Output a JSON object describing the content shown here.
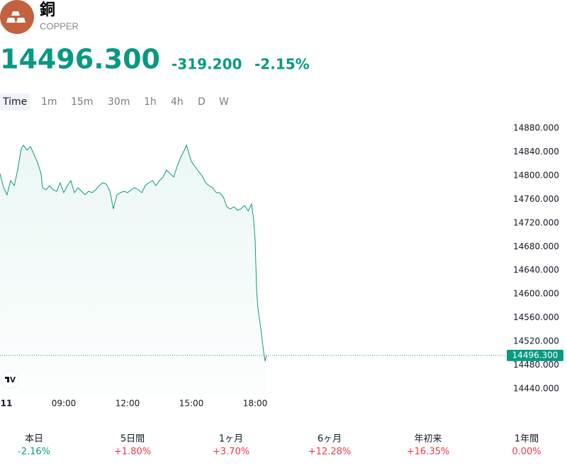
{
  "header": {
    "name": "銅",
    "symbol": "COPPER"
  },
  "quote": {
    "price": "14496.300",
    "change": "-319.200",
    "change_percent": "-2.15%",
    "color": "#089981"
  },
  "tabs": {
    "items": [
      "Time",
      "1m",
      "15m",
      "30m",
      "1h",
      "4h",
      "D",
      "W"
    ],
    "selected": 0
  },
  "chart_data": {
    "type": "line",
    "color": "#089981",
    "x": [
      6,
      6.17,
      6.33,
      6.5,
      6.67,
      6.83,
      7,
      7.1,
      7.27,
      7.43,
      7.6,
      7.77,
      7.93,
      8,
      8.17,
      8.33,
      8.5,
      8.67,
      8.83,
      9,
      9.17,
      9.33,
      9.5,
      9.67,
      9.83,
      10,
      10.17,
      10.33,
      10.5,
      10.67,
      10.83,
      11,
      11.17,
      11.33,
      11.5,
      11.67,
      11.83,
      12,
      12.17,
      12.33,
      12.5,
      12.67,
      12.83,
      13,
      13.17,
      13.33,
      13.5,
      13.67,
      13.83,
      14,
      14.17,
      14.33,
      14.5,
      14.67,
      14.77,
      14.87,
      15,
      15.17,
      15.33,
      15.5,
      15.67,
      15.83,
      16,
      16.17,
      16.33,
      16.5,
      16.67,
      16.83,
      17,
      17.17,
      17.33,
      17.5,
      17.67,
      17.83,
      17.93,
      18,
      18.07,
      18.13,
      18.2,
      18.27,
      18.33,
      18.4,
      18.47,
      18.53
    ],
    "values": [
      14803.5,
      14779.6,
      14767.6,
      14791.5,
      14783.1,
      14809.5,
      14845.3,
      14851.3,
      14842.9,
      14848.9,
      14835.8,
      14821.4,
      14803.5,
      14779.6,
      14776,
      14783.1,
      14776,
      14773.6,
      14787.9,
      14771.2,
      14783.1,
      14791.5,
      14771.2,
      14779.6,
      14773.6,
      14767.6,
      14773.6,
      14771.2,
      14776,
      14783.1,
      14787.9,
      14785.5,
      14773.6,
      14743.7,
      14767.6,
      14771.2,
      14773.6,
      14771.2,
      14776,
      14779.6,
      14776,
      14771.2,
      14783.1,
      14787.9,
      14791.5,
      14783.1,
      14791.5,
      14797.5,
      14809.5,
      14803.5,
      14797.5,
      14815.4,
      14831,
      14842.9,
      14851.3,
      14839.3,
      14823.8,
      14815.4,
      14807.1,
      14799.9,
      14787.9,
      14783.1,
      14779.6,
      14771.2,
      14771.2,
      14764,
      14747.3,
      14743.7,
      14747.3,
      14741.3,
      14743.7,
      14749.7,
      14740.1,
      14752.1,
      14725.8,
      14689.9,
      14606.2,
      14576.3,
      14558.4,
      14540.4,
      14522.5,
      14502.2,
      14486.6,
      14496.3
    ],
    "xlim": [
      6,
      29.8
    ],
    "ylim": [
      14425,
      14900
    ],
    "xticks": [
      {
        "value": 6.3,
        "label": "11"
      },
      {
        "value": 9,
        "label": "09:00"
      },
      {
        "value": 12,
        "label": "12:00"
      },
      {
        "value": 15,
        "label": "15:00"
      },
      {
        "value": 18,
        "label": "18:00"
      }
    ],
    "yticks": [
      {
        "value": 14440,
        "label": "14440.000"
      },
      {
        "value": 14480,
        "label": "14480.000"
      },
      {
        "value": 14520,
        "label": "14520.000"
      },
      {
        "value": 14560,
        "label": "14560.000"
      },
      {
        "value": 14600,
        "label": "14600.000"
      },
      {
        "value": 14640,
        "label": "14640.000"
      },
      {
        "value": 14680,
        "label": "14680.000"
      },
      {
        "value": 14720,
        "label": "14720.000"
      },
      {
        "value": 14760,
        "label": "14760.000"
      },
      {
        "value": 14800,
        "label": "14800.000"
      },
      {
        "value": 14840,
        "label": "14840.000"
      },
      {
        "value": 14880,
        "label": "14880.000"
      }
    ]
  },
  "performance": [
    {
      "label": "本日",
      "value": "-2.16%",
      "color": "#089981"
    },
    {
      "label": "5日間",
      "value": "+1.80%",
      "color": "#f23645"
    },
    {
      "label": "1ヶ月",
      "value": "+3.70%",
      "color": "#f23645"
    },
    {
      "label": "6ヶ月",
      "value": "+12.28%",
      "color": "#f23645"
    },
    {
      "label": "年初来",
      "value": "+16.35%",
      "color": "#f23645"
    },
    {
      "label": "1年間",
      "value": "0.00%",
      "color": "#f23645"
    }
  ]
}
